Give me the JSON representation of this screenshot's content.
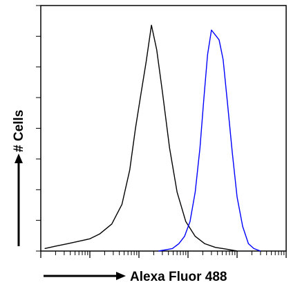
{
  "chart_data": {
    "type": "line",
    "title": "",
    "xlabel": "Alexa Fluor 488",
    "ylabel": "# Cells",
    "x_scale": "log",
    "xlim": [
      1,
      100000
    ],
    "ylim": [
      0,
      100
    ],
    "grid": false,
    "legend": "none",
    "series": [
      {
        "color": "#000000",
        "x": [
          1.2,
          2.0,
          3.5,
          6,
          10,
          16,
          28,
          45,
          65,
          85,
          110,
          140,
          180,
          230,
          300,
          420,
          600,
          900,
          1400,
          2200,
          3600,
          6000,
          10000
        ],
        "y": [
          1,
          2,
          3,
          4,
          5,
          7,
          11,
          19,
          33,
          50,
          64,
          77,
          92,
          82,
          65,
          42,
          24,
          12,
          6,
          3,
          1.5,
          0.8,
          0
        ]
      },
      {
        "color": "#0000ff",
        "x": [
          250,
          350,
          480,
          650,
          850,
          1100,
          1400,
          1750,
          2100,
          2500,
          3000,
          3600,
          4300,
          5200,
          6400,
          8000,
          10000,
          13000,
          17000,
          22000,
          30000
        ],
        "y": [
          0,
          0.5,
          1,
          3,
          6,
          12,
          24,
          42,
          62,
          80,
          90,
          88,
          86,
          78,
          60,
          40,
          22,
          10,
          3,
          1,
          0
        ]
      }
    ]
  }
}
